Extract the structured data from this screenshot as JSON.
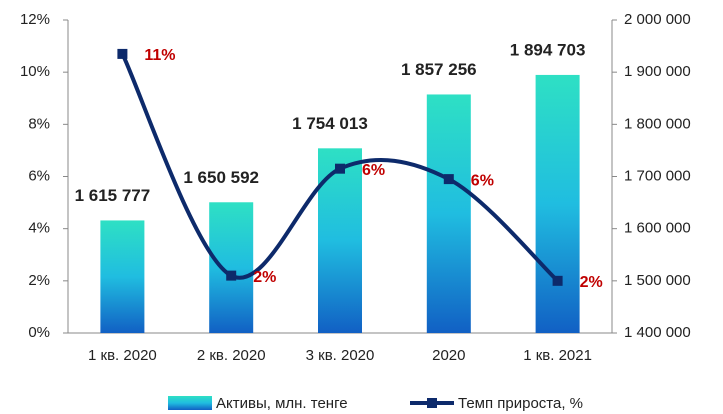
{
  "chart_data": {
    "type": "combo",
    "categories": [
      "1 кв. 2020",
      "2 кв. 2020",
      "3 кв. 2020",
      "2020",
      "1 кв. 2021"
    ],
    "series": [
      {
        "name": "Активы, млн. тенге",
        "type": "bar",
        "axis": "y2",
        "color": "#1fb5d6",
        "values": [
          1615777,
          1650592,
          1754013,
          1857256,
          1894703
        ],
        "value_labels": [
          "1 615 777",
          "1 650 592",
          "1 754 013",
          "1 857 256",
          "1 894 703"
        ]
      },
      {
        "name": "Темп прироста, %",
        "type": "line",
        "color": "#0d2a6b",
        "values": [
          10.7,
          2.2,
          6.3,
          5.9,
          2.0
        ],
        "value_labels": [
          "11%",
          "2%",
          "6%",
          "6%",
          "2%"
        ]
      }
    ],
    "ylim": [
      0,
      12
    ],
    "yticks": [
      {
        "value": 0,
        "label": "0%"
      },
      {
        "value": 2,
        "label": "2%"
      },
      {
        "value": 4,
        "label": "4%"
      },
      {
        "value": 6,
        "label": "6%"
      },
      {
        "value": 8,
        "label": "8%"
      },
      {
        "value": 10,
        "label": "10%"
      },
      {
        "value": 12,
        "label": "12%"
      }
    ],
    "y2lim": [
      1400000,
      2000000
    ],
    "y2ticks": [
      {
        "value": 1400000,
        "label": "1 400 000"
      },
      {
        "value": 1500000,
        "label": "1 500 000"
      },
      {
        "value": 1600000,
        "label": "1 600 000"
      },
      {
        "value": 1700000,
        "label": "1 700 000"
      },
      {
        "value": 1800000,
        "label": "1 800 000"
      },
      {
        "value": 1900000,
        "label": "1 900 000"
      },
      {
        "value": 2000000,
        "label": "2 000 000"
      }
    ],
    "grid": false
  }
}
